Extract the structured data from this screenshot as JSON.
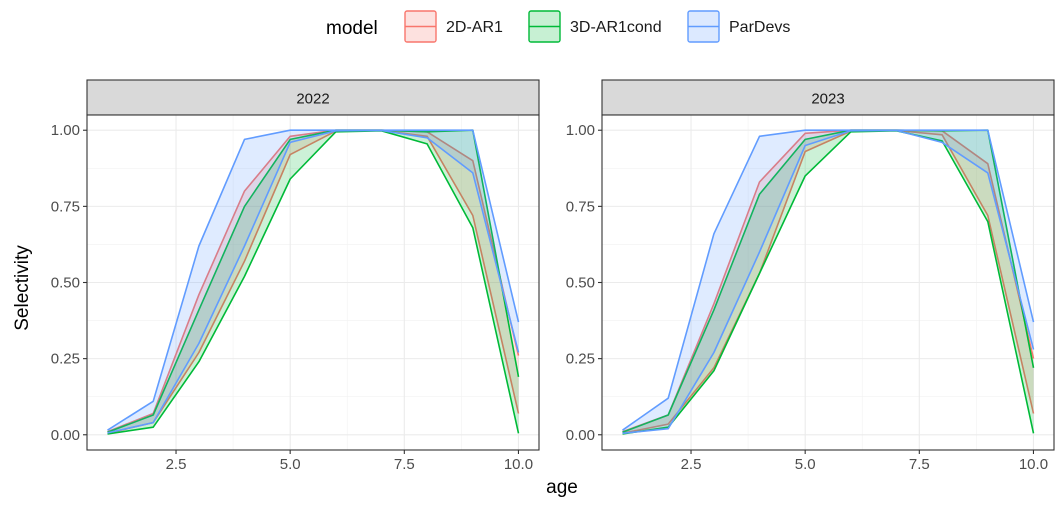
{
  "chart_data": {
    "type": "area",
    "ylabel": "Selectivity",
    "xlabel": "age",
    "x": [
      1,
      2,
      3,
      4,
      5,
      6,
      7,
      8,
      9,
      10
    ],
    "xlim": [
      0.55,
      10.45
    ],
    "ylim": [
      -0.05,
      1.05
    ],
    "xticks": [
      "2.5",
      "5.0",
      "7.5",
      "10.0"
    ],
    "yticks": [
      "0.00",
      "0.25",
      "0.50",
      "0.75",
      "1.00"
    ],
    "grid": true,
    "legend": {
      "title": "model",
      "position": "top",
      "entries": [
        "2D-AR1",
        "3D-AR1cond",
        "ParDevs"
      ]
    },
    "colors": {
      "2D-AR1": "#F8766D",
      "3D-AR1cond": "#00BA38",
      "ParDevs": "#619CFF"
    },
    "panels": [
      {
        "title": "2022",
        "series": [
          {
            "name": "2D-AR1",
            "lower": [
              0.005,
              0.04,
              0.27,
              0.57,
              0.92,
              0.997,
              0.999,
              0.98,
              0.72,
              0.07
            ],
            "upper": [
              0.01,
              0.07,
              0.46,
              0.8,
              0.98,
              1.0,
              1.0,
              0.995,
              0.9,
              0.26
            ]
          },
          {
            "name": "3D-AR1cond",
            "lower": [
              0.003,
              0.025,
              0.24,
              0.52,
              0.84,
              0.995,
              0.998,
              0.955,
              0.68,
              0.005
            ],
            "upper": [
              0.008,
              0.065,
              0.41,
              0.75,
              0.97,
              1.0,
              1.0,
              0.995,
              1.0,
              0.19
            ]
          },
          {
            "name": "ParDevs",
            "lower": [
              0.006,
              0.04,
              0.3,
              0.62,
              0.96,
              0.998,
              0.999,
              0.975,
              0.86,
              0.27
            ],
            "upper": [
              0.015,
              0.11,
              0.62,
              0.97,
              1.0,
              1.0,
              1.0,
              1.0,
              1.0,
              0.37
            ]
          }
        ]
      },
      {
        "title": "2023",
        "series": [
          {
            "name": "2D-AR1",
            "lower": [
              0.005,
              0.035,
              0.22,
              0.53,
              0.93,
              0.997,
              0.999,
              0.985,
              0.72,
              0.07
            ],
            "upper": [
              0.01,
              0.065,
              0.43,
              0.83,
              0.99,
              1.0,
              1.0,
              0.998,
              0.89,
              0.25
            ]
          },
          {
            "name": "3D-AR1cond",
            "lower": [
              0.003,
              0.025,
              0.21,
              0.53,
              0.85,
              0.995,
              0.998,
              0.965,
              0.7,
              0.005
            ],
            "upper": [
              0.008,
              0.065,
              0.41,
              0.79,
              0.97,
              1.0,
              1.0,
              0.998,
              1.0,
              0.22
            ]
          },
          {
            "name": "ParDevs",
            "lower": [
              0.005,
              0.02,
              0.27,
              0.6,
              0.95,
              0.998,
              0.999,
              0.96,
              0.86,
              0.28
            ],
            "upper": [
              0.015,
              0.12,
              0.66,
              0.98,
              1.0,
              1.0,
              1.0,
              1.0,
              1.0,
              0.37
            ]
          }
        ]
      }
    ]
  }
}
